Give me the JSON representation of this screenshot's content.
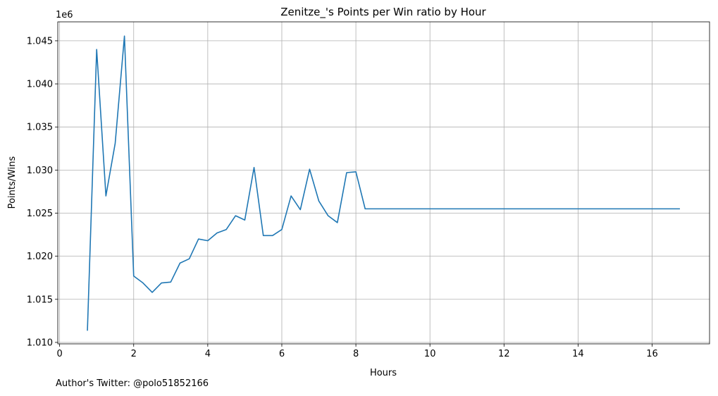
{
  "chart_data": {
    "type": "line",
    "title": "Zenitze_'s Points per Win ratio by Hour",
    "xlabel": "Hours",
    "ylabel": "Points/Wins",
    "y_offset_label": "1e6",
    "xlim": [
      -0.05,
      17.55
    ],
    "ylim": [
      1.00983,
      1.0472
    ],
    "x_ticks": [
      0,
      2,
      4,
      6,
      8,
      10,
      12,
      14,
      16
    ],
    "x_tick_labels": [
      "0",
      "2",
      "4",
      "6",
      "8",
      "10",
      "12",
      "14",
      "16"
    ],
    "y_ticks": [
      1.01,
      1.015,
      1.02,
      1.025,
      1.03,
      1.035,
      1.04,
      1.045
    ],
    "y_tick_labels": [
      "1.010",
      "1.015",
      "1.020",
      "1.025",
      "1.030",
      "1.035",
      "1.040",
      "1.045"
    ],
    "grid": true,
    "series": [
      {
        "color": "#1f77b4",
        "x": [
          0.75,
          1.0,
          1.25,
          1.5,
          1.75,
          2.0,
          2.25,
          2.5,
          2.75,
          3.0,
          3.25,
          3.5,
          3.75,
          4.0,
          4.25,
          4.5,
          4.75,
          5.0,
          5.25,
          5.5,
          5.75,
          6.0,
          6.25,
          6.5,
          6.75,
          7.0,
          7.25,
          7.5,
          7.75,
          8.0,
          8.25,
          16.75
        ],
        "y": [
          1.01135,
          1.044,
          1.027,
          1.0331,
          1.04555,
          1.0177,
          1.0169,
          1.0158,
          1.0169,
          1.017,
          1.0192,
          1.0197,
          1.022,
          1.0218,
          1.0227,
          1.0231,
          1.0247,
          1.0242,
          1.0303,
          1.0224,
          1.0224,
          1.0231,
          1.027,
          1.0254,
          1.0301,
          1.0264,
          1.0247,
          1.0239,
          1.0297,
          1.0298,
          1.0255,
          1.0255
        ]
      }
    ]
  },
  "footer": {
    "text": "Author's Twitter: @polo51852166"
  }
}
